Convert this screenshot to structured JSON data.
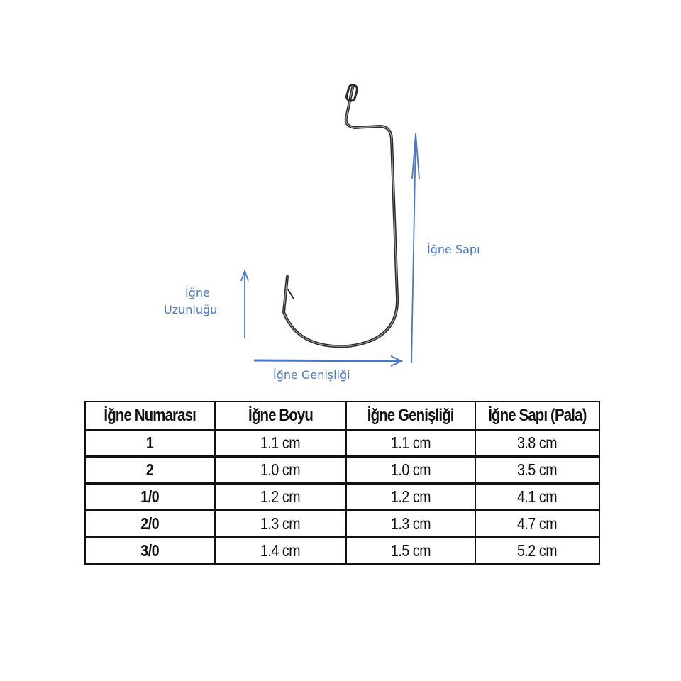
{
  "diagram": {
    "labels": {
      "length_line1": "İğne",
      "length_line2": "Uzunluğu",
      "shank": "İğne Sapı",
      "width": "İğne Genişliği"
    },
    "arrow_color": "#4a78c8",
    "hook_color": "#2a2a2a"
  },
  "table": {
    "headers": [
      "İğne Numarası",
      "İğne Boyu",
      "İğne Genişliği",
      "İğne Sapı (Pala)"
    ],
    "rows": [
      [
        "1",
        "1.1 cm",
        "1.1 cm",
        "3.8 cm"
      ],
      [
        "2",
        "1.0 cm",
        "1.0 cm",
        "3.5 cm"
      ],
      [
        "1/0",
        "1.2 cm",
        "1.2 cm",
        "4.1 cm"
      ],
      [
        "2/0",
        "1.3 cm",
        "1.3 cm",
        "4.7 cm"
      ],
      [
        "3/0",
        "1.4 cm",
        "1.5 cm",
        "5.2 cm"
      ]
    ]
  }
}
